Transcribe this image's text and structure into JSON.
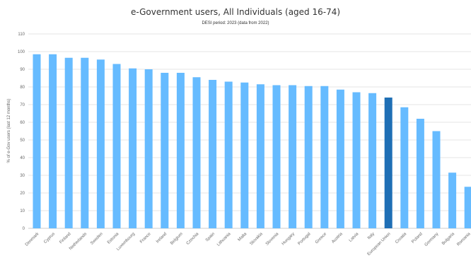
{
  "chart_data": {
    "type": "bar",
    "title": "e-Government users, All Individuals (aged 16-74)",
    "subtitle": "DESI period: 2023 (data from 2022)",
    "ylabel": "% of e-Gov users (last 12 months)",
    "xlabel": "",
    "ylim": [
      0,
      110
    ],
    "yticks": [
      0,
      10,
      20,
      30,
      40,
      50,
      60,
      70,
      80,
      90,
      100,
      110
    ],
    "grid": true,
    "categories": [
      "Denmark",
      "Cyprus",
      "Finland",
      "Netherlands",
      "Sweden",
      "Estonia",
      "Luxembourg",
      "France",
      "Ireland",
      "Belgium",
      "Czechia",
      "Spain",
      "Lithuania",
      "Malta",
      "Slovakia",
      "Slovenia",
      "Hungary",
      "Portugal",
      "Greece",
      "Austria",
      "Latvia",
      "Italy",
      "European Union",
      "Croatia",
      "Poland",
      "Germany",
      "Bulgaria",
      "Romania"
    ],
    "values": [
      98.5,
      98.5,
      96.5,
      96.5,
      95.5,
      93,
      90.5,
      90,
      88,
      88,
      85.5,
      84,
      83,
      82.5,
      81.5,
      81,
      81,
      80.5,
      80.5,
      78.5,
      77,
      76.5,
      74,
      68.5,
      62,
      55,
      31.5,
      23.5
    ],
    "highlight": "European Union",
    "colors": {
      "bar": "#66bbff",
      "highlight": "#1f6fb5"
    }
  }
}
